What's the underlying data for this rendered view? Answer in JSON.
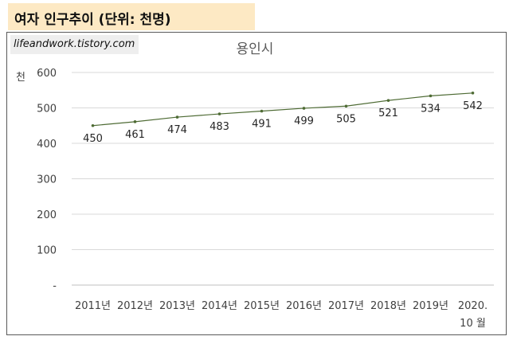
{
  "header": {
    "title": "여자 인구추이 (단위: 천명)"
  },
  "watermark": {
    "text": "lifeandwork.tistory.com"
  },
  "chart_data": {
    "type": "line",
    "title": "용인시",
    "ylabel": "천",
    "xlabel": "",
    "categories": [
      "2011년",
      "2012년",
      "2013년",
      "2014년",
      "2015년",
      "2016년",
      "2017년",
      "2018년",
      "2019년",
      "2020.|10 월"
    ],
    "values": [
      450,
      461,
      474,
      483,
      491,
      499,
      505,
      521,
      534,
      542
    ],
    "data_labels": [
      "450",
      "461",
      "474",
      "483",
      "491",
      "499",
      "505",
      "521",
      "534",
      "542"
    ],
    "ylim": [
      0,
      600
    ],
    "yticks": [
      0,
      100,
      200,
      300,
      400,
      500,
      600
    ],
    "ytick_labels": [
      "-",
      "100",
      "200",
      "300",
      "400",
      "500",
      "600"
    ],
    "grid": true,
    "legend": "none",
    "line_color": "#4e6b34"
  }
}
